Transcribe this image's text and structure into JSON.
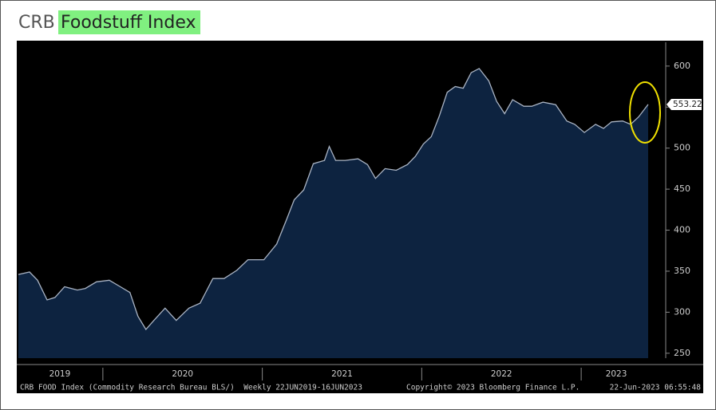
{
  "chart_data": {
    "type": "area",
    "title": "CRB",
    "title_highlight": "Foodstuff Index",
    "highlight_color": "#80f080",
    "line_color": "#aab4c4",
    "fill_color": "#0d2340",
    "x": [
      2019.47,
      2019.54,
      2019.59,
      2019.65,
      2019.7,
      2019.76,
      2019.84,
      2019.89,
      2019.96,
      2020.04,
      2020.11,
      2020.17,
      2020.22,
      2020.27,
      2020.32,
      2020.39,
      2020.46,
      2020.54,
      2020.61,
      2020.69,
      2020.76,
      2020.84,
      2020.91,
      2021.01,
      2021.09,
      2021.15,
      2021.2,
      2021.26,
      2021.32,
      2021.39,
      2021.42,
      2021.46,
      2021.52,
      2021.6,
      2021.66,
      2021.71,
      2021.77,
      2021.84,
      2021.91,
      2021.96,
      2022.01,
      2022.06,
      2022.11,
      2022.16,
      2022.21,
      2022.26,
      2022.31,
      2022.36,
      2022.42,
      2022.47,
      2022.52,
      2022.57,
      2022.64,
      2022.69,
      2022.76,
      2022.84,
      2022.91,
      2022.96,
      2023.02,
      2023.09,
      2023.14,
      2023.19,
      2023.26,
      2023.31,
      2023.36,
      2023.42
    ],
    "values": [
      346,
      349,
      339,
      315,
      318,
      331,
      327,
      329,
      337,
      339,
      331,
      324,
      295,
      279,
      290,
      305,
      290,
      305,
      311,
      341,
      341,
      351,
      364,
      364,
      383,
      412,
      437,
      449,
      481,
      485,
      502,
      485,
      485,
      487,
      480,
      463,
      475,
      473,
      480,
      490,
      505,
      514,
      539,
      568,
      575,
      573,
      592,
      597,
      582,
      557,
      542,
      559,
      551,
      551,
      556,
      553,
      533,
      529,
      519,
      529,
      524,
      532,
      533,
      529,
      538,
      553.22
    ],
    "xlim": [
      2019.47,
      2023.44
    ],
    "ylim": [
      244,
      629
    ],
    "yticks": [
      250,
      300,
      350,
      400,
      450,
      500,
      550,
      600
    ],
    "year_boundaries": [
      2020,
      2021,
      2022,
      2023
    ],
    "xticks": [
      {
        "value": 2019.73,
        "label": "2019"
      },
      {
        "value": 2020.5,
        "label": "2020"
      },
      {
        "value": 2021.5,
        "label": "2021"
      },
      {
        "value": 2022.5,
        "label": "2022"
      },
      {
        "value": 2023.22,
        "label": "2023"
      }
    ],
    "footer_left": "CRB FOOD Index (Commodity Research Bureau BLS/)  Weekly 22JUN2019-16JUN2023",
    "footer_center": "Copyright© 2023 Bloomberg Finance L.P.",
    "footer_right": "22-Jun-2023 06:55:48"
  }
}
